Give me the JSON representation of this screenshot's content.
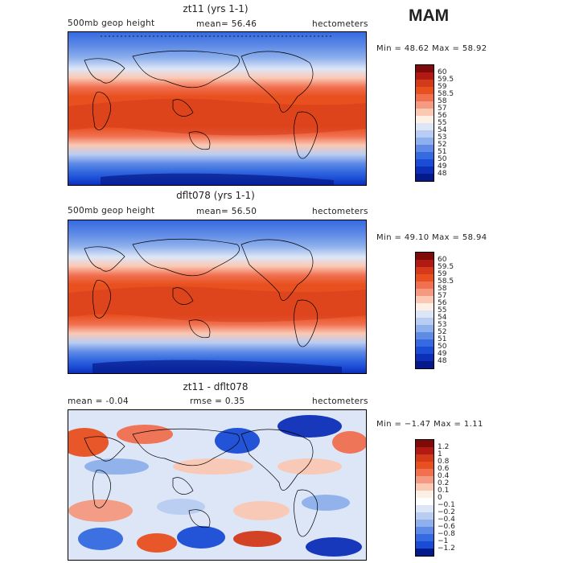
{
  "season": "MAM",
  "panels": [
    {
      "title": "zt11 (yrs 1-1)",
      "left": "500mb geop height",
      "mid": "mean=  56.46",
      "right": "hectometers",
      "minmax": "Min =  48.62 Max =  58.92",
      "colorbar": {
        "labels": [
          "60",
          "59.5",
          "59",
          "58.5",
          "58",
          "57",
          "56",
          "55",
          "54",
          "53",
          "52",
          "51",
          "50",
          "49",
          "48"
        ],
        "colors": [
          "#7f0a0a",
          "#b01a12",
          "#d43a1a",
          "#e8501f",
          "#f07050",
          "#f59a80",
          "#fbc8b4",
          "#fff0e6",
          "#dde6f7",
          "#b9cdf2",
          "#8eb0ec",
          "#5f8be6",
          "#356ae0",
          "#1a4cd6",
          "#0d2fb8",
          "#051a8a"
        ]
      }
    },
    {
      "title": "dflt078 (yrs 1-1)",
      "left": "500mb geop height",
      "mid": "mean=  56.50",
      "right": "hectometers",
      "minmax": "Min =  49.10 Max =  58.94",
      "colorbar": {
        "labels": [
          "60",
          "59.5",
          "59",
          "58.5",
          "58",
          "57",
          "56",
          "55",
          "54",
          "53",
          "52",
          "51",
          "50",
          "49",
          "48"
        ],
        "colors": [
          "#7f0a0a",
          "#b01a12",
          "#d43a1a",
          "#e8501f",
          "#f07050",
          "#f59a80",
          "#fbc8b4",
          "#fff0e6",
          "#dde6f7",
          "#b9cdf2",
          "#8eb0ec",
          "#5f8be6",
          "#356ae0",
          "#1a4cd6",
          "#0d2fb8",
          "#051a8a"
        ]
      }
    },
    {
      "title": "zt11 - dflt078",
      "left": "mean =   -0.04",
      "mid": "rmse =    0.35",
      "right": "hectometers",
      "minmax": "Min =  −1.47 Max =    1.11",
      "colorbar": {
        "labels": [
          "1.2",
          "1",
          "0.8",
          "0.6",
          "0.4",
          "0.2",
          "0.1",
          "0",
          "−0.1",
          "−0.2",
          "−0.4",
          "−0.6",
          "−0.8",
          "−1",
          "−1.2"
        ],
        "colors": [
          "#7f0a0a",
          "#b01a12",
          "#d43a1a",
          "#e8501f",
          "#f07050",
          "#f59a80",
          "#fbc8b4",
          "#fff0e6",
          "#ffffff",
          "#dde6f7",
          "#b9cdf2",
          "#8eb0ec",
          "#5f8be6",
          "#356ae0",
          "#1a4cd6",
          "#051a8a"
        ]
      }
    }
  ]
}
